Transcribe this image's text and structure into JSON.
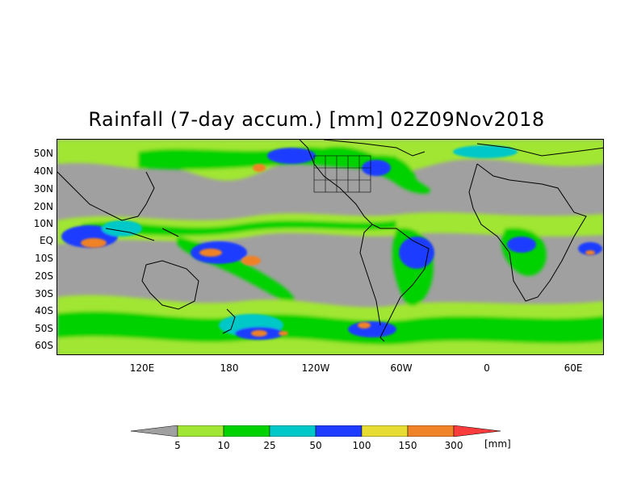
{
  "title": "Rainfall (7-day accum.) [mm] 02Z09Nov2018",
  "lat_ticks": [
    "50N",
    "40N",
    "30N",
    "20N",
    "10N",
    "EQ",
    "10S",
    "20S",
    "30S",
    "40S",
    "50S",
    "60S"
  ],
  "lon_ticks": [
    "120E",
    "180",
    "120W",
    "60W",
    "0",
    "60E"
  ],
  "legend": {
    "thresholds": [
      "5",
      "10",
      "25",
      "50",
      "100",
      "150",
      "300"
    ],
    "unit": "[mm]",
    "colors": [
      "#a0a0a0",
      "#a0e632",
      "#00d200",
      "#00c8c8",
      "#1e3cff",
      "#e6dc32",
      "#f08228",
      "#fa3c3c"
    ]
  }
}
